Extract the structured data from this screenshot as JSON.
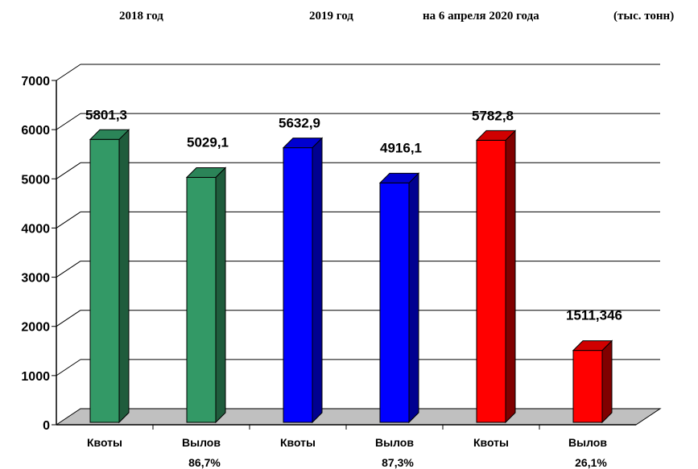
{
  "header": {
    "group_2018": "2018  год",
    "group_2019": "2019  год",
    "group_2020": "на 6 апреля 2020 года",
    "units": "(тыс. тонн)"
  },
  "chart_data": {
    "type": "bar",
    "groups": [
      {
        "label": "2018  год",
        "color_front": "#339966",
        "color_top": "#2b8458",
        "color_side": "#1f5c3c",
        "bars": [
          {
            "category": "Квоты",
            "sublabel": "",
            "value": 5801.3,
            "data_label": "5801,3"
          },
          {
            "category": "Вылов",
            "sublabel": "86,7%",
            "value": 5029.1,
            "data_label": "5029,1"
          }
        ]
      },
      {
        "label": "2019  год",
        "color_front": "#0000ff",
        "color_top": "#0000d0",
        "color_side": "#000090",
        "bars": [
          {
            "category": "Квоты",
            "sublabel": "",
            "value": 5632.9,
            "data_label": "5632,9"
          },
          {
            "category": "Вылов",
            "sublabel": "87,3%",
            "value": 4916.1,
            "data_label": "4916,1"
          }
        ]
      },
      {
        "label": "на 6 апреля 2020 года",
        "color_front": "#ff0000",
        "color_top": "#d00000",
        "color_side": "#800000",
        "bars": [
          {
            "category": "Квоты",
            "sublabel": "",
            "value": 5782.8,
            "data_label": "5782,8"
          },
          {
            "category": "Вылов",
            "sublabel": "26,1%",
            "value": 1511.346,
            "data_label": "1511,346"
          }
        ]
      }
    ],
    "y_ticks": [
      "0",
      "1000",
      "2000",
      "3000",
      "4000",
      "5000",
      "6000",
      "7000"
    ],
    "ylim": [
      0,
      7000
    ],
    "grid": true,
    "units": "(тыс. тонн)"
  }
}
